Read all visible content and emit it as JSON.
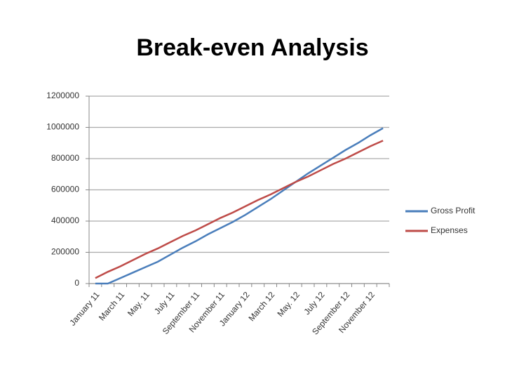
{
  "chart_data": {
    "type": "line",
    "title": "Break-even Analysis",
    "categories": [
      "January 11",
      null,
      "March 11",
      null,
      "May. 11",
      null,
      "July 11",
      null,
      "September 11",
      null,
      "November 11",
      null,
      "January 12",
      null,
      "March 12",
      null,
      "May. 12",
      null,
      "July 12",
      null,
      "September 12",
      null,
      "November 12",
      null
    ],
    "series": [
      {
        "name": "Gross Profit",
        "color": "#4a7ebb",
        "values": [
          0,
          0,
          35000,
          70000,
          105000,
          140000,
          185000,
          230000,
          270000,
          315000,
          355000,
          395000,
          440000,
          490000,
          540000,
          595000,
          650000,
          705000,
          755000,
          805000,
          855000,
          900000,
          950000,
          995000
        ]
      },
      {
        "name": "Expenses",
        "color": "#be4b48",
        "values": [
          35000,
          75000,
          110000,
          150000,
          190000,
          225000,
          265000,
          305000,
          340000,
          380000,
          420000,
          455000,
          495000,
          535000,
          570000,
          610000,
          650000,
          685000,
          725000,
          765000,
          800000,
          840000,
          880000,
          915000
        ]
      }
    ],
    "ylim": [
      0,
      1200000
    ],
    "yticks": [
      0,
      200000,
      400000,
      600000,
      800000,
      1000000,
      1200000
    ],
    "grid": true,
    "legend": "right"
  }
}
